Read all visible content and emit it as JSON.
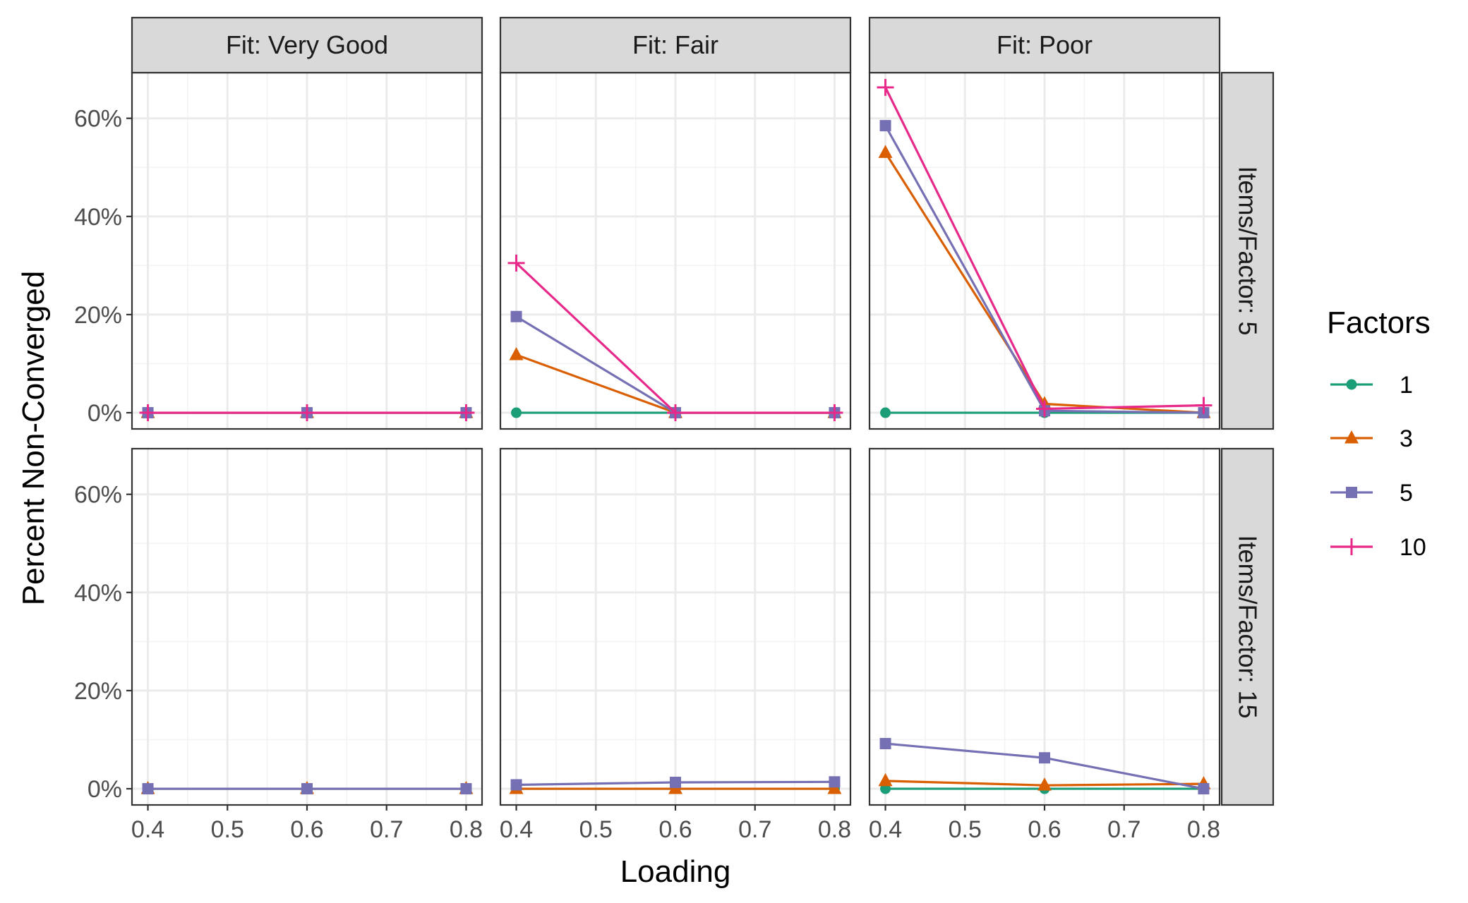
{
  "chart_data": {
    "type": "line",
    "xlabel": "Loading",
    "ylabel": "Percent Non-Converged",
    "x": [
      0.4,
      0.6,
      0.8
    ],
    "x_ticks": [
      "0.4",
      "0.5",
      "0.6",
      "0.7",
      "0.8"
    ],
    "x_tick_values": [
      0.4,
      0.5,
      0.6,
      0.7,
      0.8
    ],
    "xlim": [
      0.38,
      0.82
    ],
    "y_ticks": [
      "0%",
      "20%",
      "40%",
      "60%"
    ],
    "y_tick_values": [
      0,
      20,
      40,
      60
    ],
    "ylim": [
      -3.3,
      69.3
    ],
    "grid": true,
    "legend": {
      "title": "Factors",
      "position": "right",
      "entries": [
        {
          "label": "1",
          "color": "#1b9e77",
          "shape": "circle"
        },
        {
          "label": "3",
          "color": "#d95f02",
          "shape": "triangle"
        },
        {
          "label": "5",
          "color": "#7570b3",
          "shape": "square"
        },
        {
          "label": "10",
          "color": "#e7298a",
          "shape": "plus"
        }
      ]
    },
    "col_facets": [
      "Fit: Very Good",
      "Fit: Fair",
      "Fit: Poor"
    ],
    "row_facets": [
      "Items/Factor: 5",
      "Items/Factor: 15"
    ],
    "panels": [
      {
        "row": 0,
        "col": 0,
        "series": [
          {
            "factor": "1",
            "values": [
              0,
              0,
              0
            ]
          },
          {
            "factor": "3",
            "values": [
              0,
              0,
              0
            ]
          },
          {
            "factor": "5",
            "values": [
              0,
              0,
              0
            ]
          },
          {
            "factor": "10",
            "values": [
              0,
              0,
              0
            ]
          }
        ]
      },
      {
        "row": 0,
        "col": 1,
        "series": [
          {
            "factor": "1",
            "values": [
              0,
              0,
              0
            ]
          },
          {
            "factor": "3",
            "values": [
              11.8,
              0,
              0
            ]
          },
          {
            "factor": "5",
            "values": [
              19.6,
              0,
              0
            ]
          },
          {
            "factor": "10",
            "values": [
              30.5,
              0,
              0
            ]
          }
        ]
      },
      {
        "row": 0,
        "col": 2,
        "series": [
          {
            "factor": "1",
            "values": [
              0,
              0,
              0
            ]
          },
          {
            "factor": "3",
            "values": [
              53,
              1.8,
              0
            ]
          },
          {
            "factor": "5",
            "values": [
              58.5,
              0.4,
              0
            ]
          },
          {
            "factor": "10",
            "values": [
              66.3,
              0.8,
              1.5
            ]
          }
        ]
      },
      {
        "row": 1,
        "col": 0,
        "series": [
          {
            "factor": "1",
            "values": [
              0,
              0,
              0
            ]
          },
          {
            "factor": "3",
            "values": [
              0,
              0,
              0
            ]
          },
          {
            "factor": "5",
            "values": [
              0,
              0,
              0
            ]
          }
        ]
      },
      {
        "row": 1,
        "col": 1,
        "series": [
          {
            "factor": "1",
            "values": [
              0,
              0,
              0
            ]
          },
          {
            "factor": "3",
            "values": [
              0,
              0,
              0
            ]
          },
          {
            "factor": "5",
            "values": [
              0.8,
              1.3,
              1.4
            ]
          }
        ]
      },
      {
        "row": 1,
        "col": 2,
        "series": [
          {
            "factor": "1",
            "values": [
              0,
              0,
              0
            ]
          },
          {
            "factor": "3",
            "values": [
              1.6,
              0.7,
              1.0
            ]
          },
          {
            "factor": "5",
            "values": [
              9.2,
              6.3,
              0
            ]
          }
        ]
      }
    ]
  }
}
